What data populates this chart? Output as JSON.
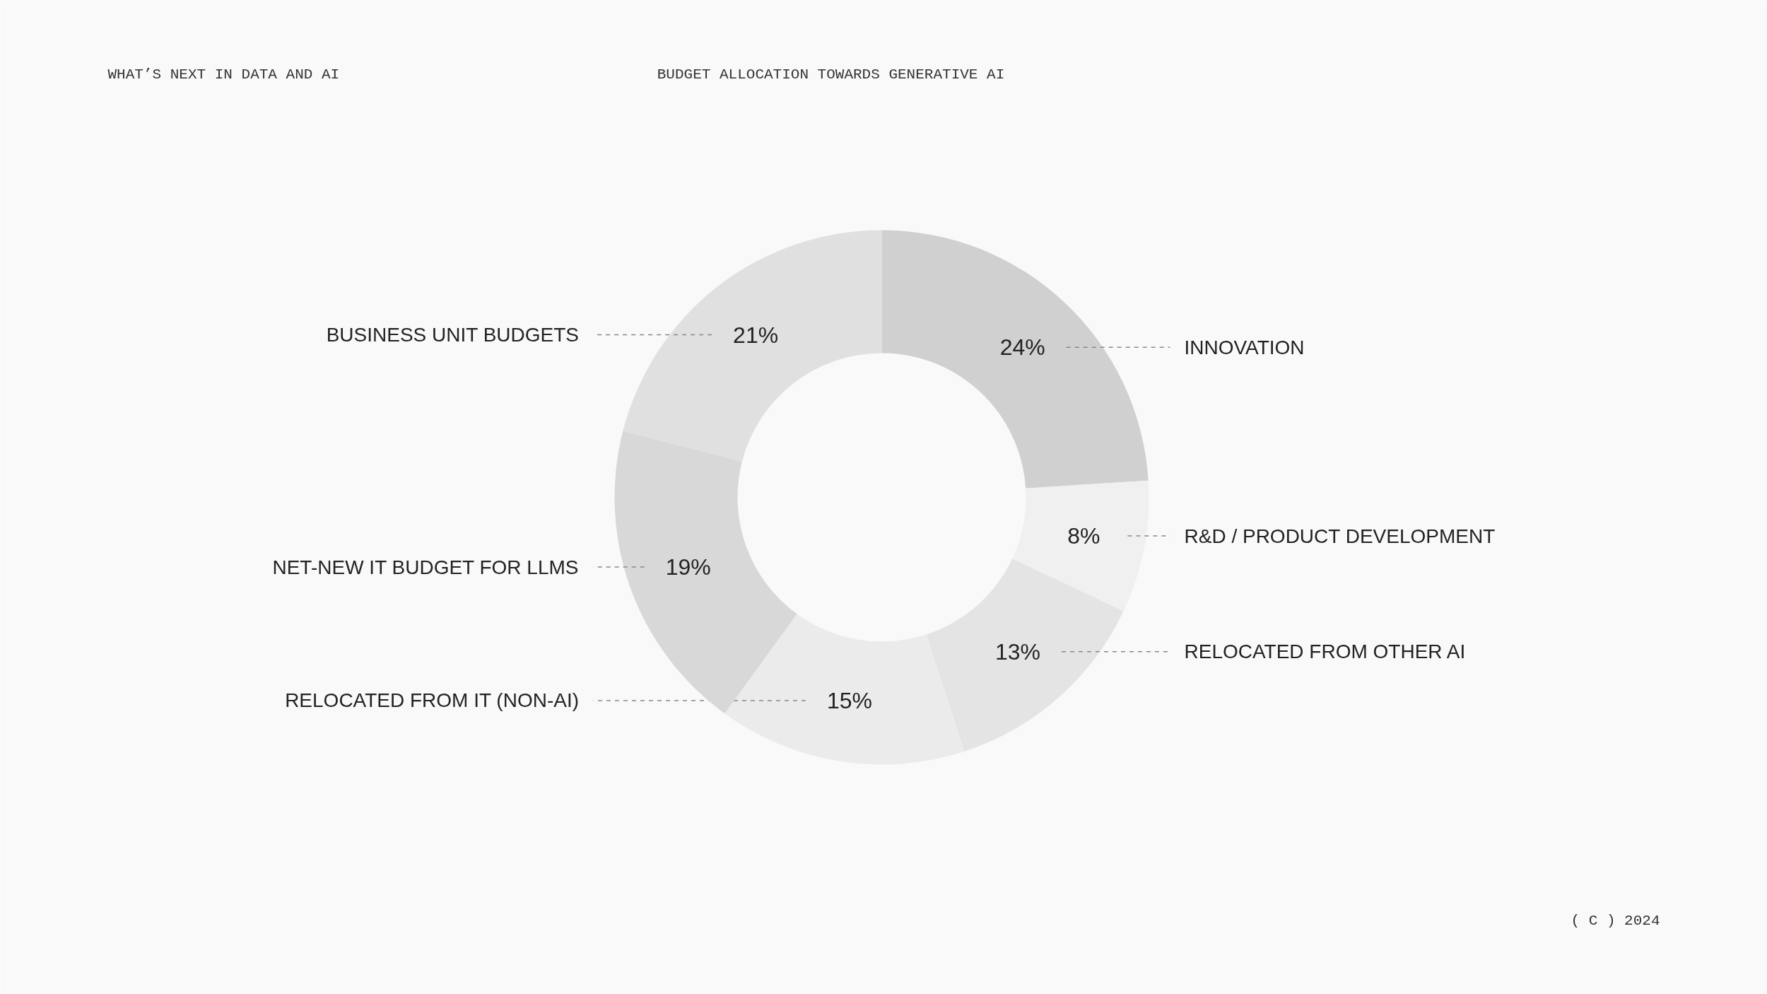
{
  "chart_data": {
    "type": "donut",
    "title": "BUDGET ALLOCATION TOWARDS GENERATIVE AI",
    "subtitle": "WHAT’S NEXT IN DATA AND AI",
    "categories": [
      "INNOVATION",
      "R&D / PRODUCT DEVELOPMENT",
      "RELOCATED FROM OTHER AI",
      "RELOCATED FROM IT (NON-AI)",
      "NET-NEW IT BUDGET FOR LLMS",
      "BUSINESS UNIT BUDGETS"
    ],
    "values": [
      24,
      8,
      13,
      15,
      19,
      21
    ],
    "colors": [
      "#d0d0d0",
      "#f0f0f0",
      "#e4e4e4",
      "#ebebeb",
      "#d8d8d8",
      "#e0e0e0"
    ],
    "value_labels": [
      "24%",
      "8%",
      "13%",
      "15%",
      "19%",
      "21%"
    ],
    "annotations": [
      "( C ) 2024"
    ]
  }
}
